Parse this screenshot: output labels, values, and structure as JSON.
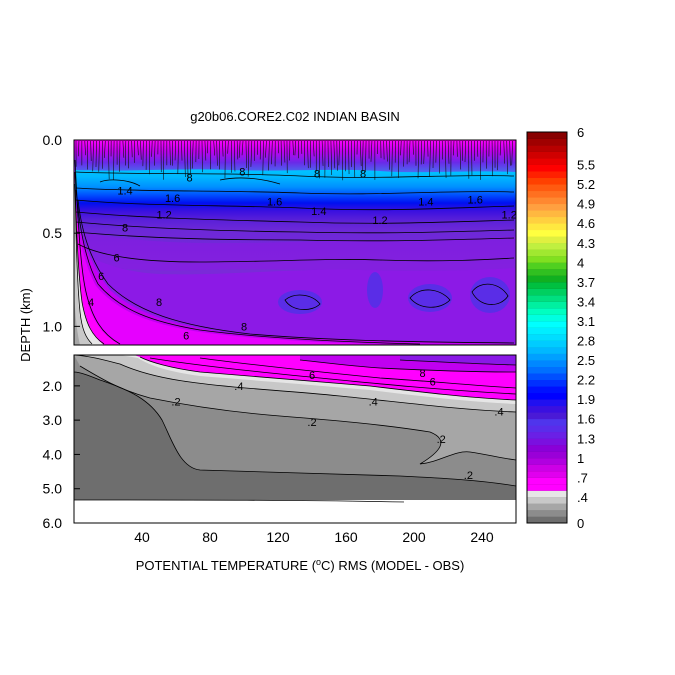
{
  "chart_data": {
    "type": "heatmap",
    "title": "g20b06.CORE2.C02 INDIAN BASIN",
    "xlabel": "POTENTIAL TEMPERATURE (°C) RMS (MODEL - OBS)",
    "xlabel_pre": "POTENTIAL TEMPERATURE (",
    "xlabel_sup": "o",
    "xlabel_post": "C) RMS (MODEL - OBS)",
    "ylabel": "DEPTH (km)",
    "xlim": [
      0,
      260
    ],
    "x_ticks": [
      "40",
      "80",
      "120",
      "160",
      "200",
      "240"
    ],
    "x_tick_values": [
      40,
      80,
      120,
      160,
      200,
      240
    ],
    "upper_panel": {
      "ylim": [
        0.0,
        1.1
      ],
      "y_ticks": [
        "0.0",
        "0.5",
        "1.0"
      ],
      "y_tick_values": [
        0.0,
        0.5,
        1.0
      ]
    },
    "lower_panel": {
      "ylim": [
        1.1,
        6.0
      ],
      "y_ticks": [
        "2.0",
        "3.0",
        "4.0",
        "5.0",
        "6.0"
      ],
      "y_tick_values": [
        2.0,
        3.0,
        4.0,
        5.0,
        6.0
      ]
    },
    "colorbar": {
      "labels": [
        "6",
        "5.5",
        "5.2",
        "4.9",
        "4.6",
        "4.3",
        "4",
        "3.7",
        "3.4",
        "3.1",
        "2.8",
        "2.5",
        "2.2",
        "1.9",
        "1.6",
        "1.3",
        "1",
        ".7",
        ".4",
        "0"
      ],
      "label_values": [
        6,
        5.5,
        5.2,
        4.9,
        4.6,
        4.3,
        4,
        3.7,
        3.4,
        3.1,
        2.8,
        2.5,
        2.2,
        1.9,
        1.6,
        1.3,
        1,
        0.7,
        0.4,
        0
      ],
      "colors_bottom_to_top": [
        "#6e6e6e",
        "#8c8c8c",
        "#a6a6a6",
        "#c8c8c8",
        "#e6e6e6",
        "#ff00ff",
        "#ff00ff",
        "#e000ee",
        "#cc00e6",
        "#b000e0",
        "#9a00d8",
        "#8a00d8",
        "#7a10e0",
        "#6a20e6",
        "#5a2cea",
        "#4f35ec",
        "#4a1ad6",
        "#3a10e0",
        "#2010f0",
        "#0000ff",
        "#0010ff",
        "#0030ff",
        "#0050ff",
        "#0070ff",
        "#0088ff",
        "#00a0ff",
        "#00b8ff",
        "#00ccff",
        "#00ddff",
        "#00eeff",
        "#00ffff",
        "#00ffe0",
        "#00ffc0",
        "#00f0a0",
        "#00e080",
        "#00d060",
        "#00c040",
        "#10b020",
        "#30c020",
        "#50d020",
        "#80e020",
        "#a0e830",
        "#c0f040",
        "#e0f040",
        "#ffff40",
        "#ffe840",
        "#ffd040",
        "#ffb840",
        "#ffa040",
        "#ff8830",
        "#ff7020",
        "#ff5a10",
        "#ff4000",
        "#ff2000",
        "#ff0000",
        "#e80000",
        "#d00000",
        "#b80000",
        "#a00000",
        "#880000"
      ]
    },
    "contour_labels_upper": [
      {
        "text": "8",
        "x": 68,
        "y": 0.2
      },
      {
        "text": "8",
        "x": 99,
        "y": 0.17
      },
      {
        "text": "8",
        "x": 143,
        "y": 0.18
      },
      {
        "text": "8",
        "x": 170,
        "y": 0.18
      },
      {
        "text": "1.4",
        "x": 30,
        "y": 0.27
      },
      {
        "text": "1.6",
        "x": 58,
        "y": 0.31
      },
      {
        "text": "1.6",
        "x": 118,
        "y": 0.33
      },
      {
        "text": "1.4",
        "x": 207,
        "y": 0.33
      },
      {
        "text": "1.6",
        "x": 236,
        "y": 0.32
      },
      {
        "text": "1.4",
        "x": 144,
        "y": 0.38
      },
      {
        "text": "1.2",
        "x": 53,
        "y": 0.4
      },
      {
        "text": "1.2",
        "x": 180,
        "y": 0.43
      },
      {
        "text": "1.2",
        "x": 256,
        "y": 0.4
      },
      {
        "text": "8",
        "x": 30,
        "y": 0.47
      },
      {
        "text": "6",
        "x": 25,
        "y": 0.63
      },
      {
        "text": "6",
        "x": 16,
        "y": 0.73
      },
      {
        "text": "4",
        "x": 10,
        "y": 0.87
      },
      {
        "text": "8",
        "x": 50,
        "y": 0.87
      },
      {
        "text": "6",
        "x": 66,
        "y": 1.05
      },
      {
        "text": "8",
        "x": 100,
        "y": 1.0
      }
    ],
    "contour_labels_lower": [
      {
        "text": "6",
        "x": 140,
        "y": 1.68
      },
      {
        "text": "8",
        "x": 205,
        "y": 1.62
      },
      {
        "text": "6",
        "x": 211,
        "y": 1.88
      },
      {
        "text": ".4",
        "x": 97,
        "y": 2.0
      },
      {
        "text": ".4",
        "x": 176,
        "y": 2.45
      },
      {
        "text": ".4",
        "x": 250,
        "y": 2.75
      },
      {
        "text": ".2",
        "x": 60,
        "y": 2.45
      },
      {
        "text": ".2",
        "x": 140,
        "y": 3.05
      },
      {
        "text": ".2",
        "x": 216,
        "y": 3.55
      },
      {
        "text": ".2",
        "x": 232,
        "y": 4.6
      }
    ]
  }
}
